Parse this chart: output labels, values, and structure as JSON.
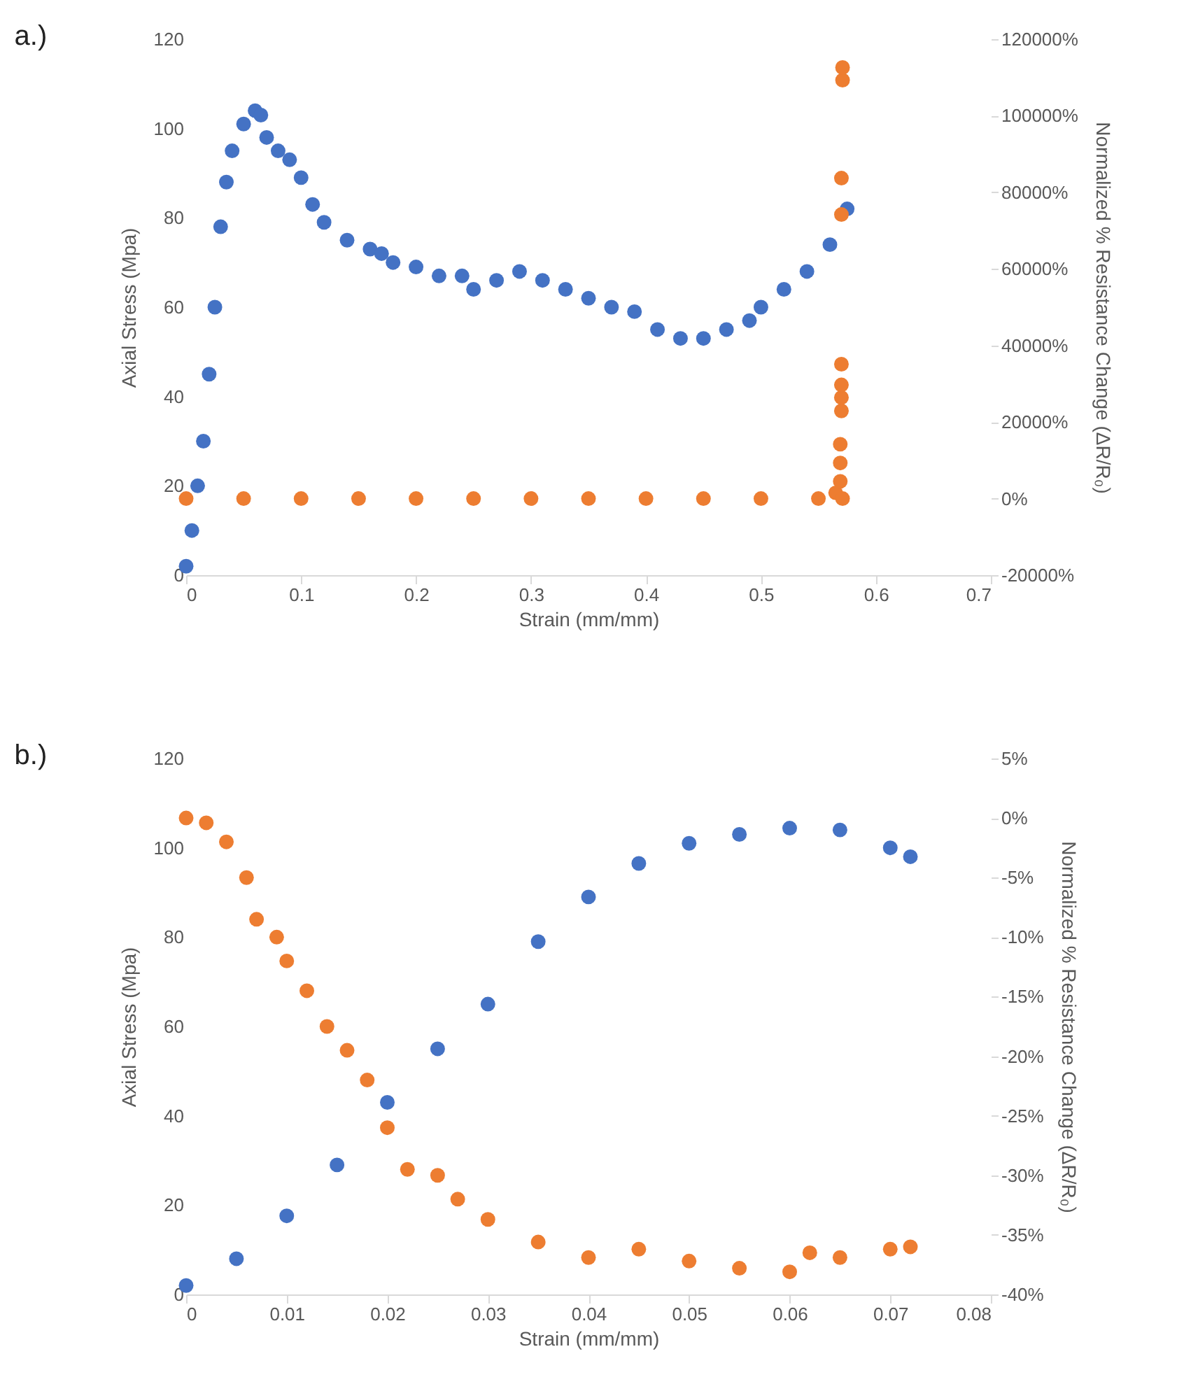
{
  "chart_data": [
    {
      "type": "scatter",
      "title": "a.)",
      "xlabel": "Strain (mm/mm)",
      "ylabel": "Axial Stress (Mpa)",
      "y2label": "Normalized % Resistance Change (ΔR/R₀)",
      "marker": "circle",
      "grid": false,
      "xlim": [
        0,
        0.7
      ],
      "xticks": [
        0,
        0.1,
        0.2,
        0.3,
        0.4,
        0.5,
        0.6,
        0.7
      ],
      "ylim": [
        0,
        120
      ],
      "yticks": [
        0,
        20,
        40,
        60,
        80,
        100,
        120
      ],
      "y2lim": [
        -20000,
        120000
      ],
      "y2ticks": [
        {
          "value": -20000,
          "label": "-20000%"
        },
        {
          "value": 0,
          "label": "0%"
        },
        {
          "value": 20000,
          "label": "20000%"
        },
        {
          "value": 40000,
          "label": "40000%"
        },
        {
          "value": 60000,
          "label": "60000%"
        },
        {
          "value": 80000,
          "label": "80000%"
        },
        {
          "value": 100000,
          "label": "100000%"
        },
        {
          "value": 120000,
          "label": "120000%"
        }
      ],
      "series": [
        {
          "color": "#4472c4",
          "x": [
            0,
            0.005,
            0.01,
            0.015,
            0.02,
            0.025,
            0.03,
            0.035,
            0.04,
            0.05,
            0.06,
            0.065,
            0.07,
            0.08,
            0.09,
            0.1,
            0.11,
            0.12,
            0.14,
            0.16,
            0.17,
            0.18,
            0.2,
            0.22,
            0.24,
            0.25,
            0.27,
            0.29,
            0.31,
            0.33,
            0.35,
            0.37,
            0.39,
            0.41,
            0.43,
            0.45,
            0.47,
            0.49,
            0.5,
            0.52,
            0.54,
            0.56,
            0.575
          ],
          "values": [
            2,
            10,
            20,
            30,
            45,
            60,
            78,
            88,
            95,
            101,
            104,
            103,
            98,
            95,
            93,
            89,
            83,
            79,
            75,
            73,
            72,
            70,
            69,
            67,
            67,
            64,
            66,
            68,
            66,
            64,
            62,
            60,
            59,
            55,
            53,
            53,
            55,
            57,
            60,
            64,
            68,
            74,
            82
          ]
        },
        {
          "color": "#ed7d31",
          "axis": "y2",
          "x": [
            0,
            0.05,
            0.1,
            0.15,
            0.2,
            0.25,
            0.3,
            0.35,
            0.4,
            0.45,
            0.5,
            0.55,
            0.565,
            0.569,
            0.569,
            0.569,
            0.57,
            0.57,
            0.57,
            0.57,
            0.57,
            0.57,
            0.571,
            0.571,
            0.571
          ],
          "values": [
            0,
            0,
            0,
            0,
            0,
            0,
            0,
            0,
            0,
            0,
            0,
            0,
            1500,
            4500,
            9300,
            14200,
            22900,
            26400,
            29700,
            35100,
            74200,
            83700,
            109300,
            112600,
            0
          ]
        }
      ]
    },
    {
      "type": "scatter",
      "title": "b.)",
      "xlabel": "Strain (mm/mm)",
      "ylabel": "Axial Stress (Mpa)",
      "y2label": "Normalized % Resistance Change (ΔR/R₀)",
      "marker": "circle",
      "grid": false,
      "xlim": [
        0,
        0.08
      ],
      "xticks": [
        0,
        0.01,
        0.02,
        0.03,
        0.04,
        0.05,
        0.06,
        0.07,
        0.08
      ],
      "ylim": [
        0,
        120
      ],
      "yticks": [
        0,
        20,
        40,
        60,
        80,
        100,
        120
      ],
      "y2lim": [
        -40,
        5
      ],
      "y2ticks": [
        {
          "value": -40,
          "label": "-40%"
        },
        {
          "value": -35,
          "label": "-35%"
        },
        {
          "value": -30,
          "label": "-30%"
        },
        {
          "value": -25,
          "label": "-25%"
        },
        {
          "value": -20,
          "label": "-20%"
        },
        {
          "value": -15,
          "label": "-15%"
        },
        {
          "value": -10,
          "label": "-10%"
        },
        {
          "value": -5,
          "label": "-5%"
        },
        {
          "value": 0,
          "label": "0%"
        },
        {
          "value": 5,
          "label": "5%"
        }
      ],
      "series": [
        {
          "color": "#4472c4",
          "x": [
            0,
            0.005,
            0.01,
            0.015,
            0.02,
            0.025,
            0.03,
            0.035,
            0.04,
            0.045,
            0.05,
            0.055,
            0.06,
            0.065,
            0.07,
            0.072
          ],
          "values": [
            2,
            8,
            17.6,
            29,
            43,
            55,
            65,
            79,
            89,
            96.5,
            101,
            103,
            104.4,
            104,
            100,
            98
          ]
        },
        {
          "color": "#ed7d31",
          "axis": "y2",
          "x": [
            0,
            0.002,
            0.004,
            0.006,
            0.007,
            0.009,
            0.01,
            0.012,
            0.014,
            0.016,
            0.018,
            0.02,
            0.022,
            0.025,
            0.027,
            0.03,
            0.035,
            0.04,
            0.045,
            0.05,
            0.055,
            0.06,
            0.062,
            0.065,
            0.07,
            0.072
          ],
          "values": [
            0,
            -0.4,
            -2,
            -5,
            -8.5,
            -10,
            -12,
            -14.5,
            -17.5,
            -19.5,
            -22,
            -26,
            -29.5,
            -30,
            -32,
            -33.7,
            -35.6,
            -36.9,
            -36.2,
            -37.2,
            -37.8,
            -38.1,
            -36.5,
            -36.9,
            -36.2,
            -36
          ]
        }
      ]
    }
  ]
}
